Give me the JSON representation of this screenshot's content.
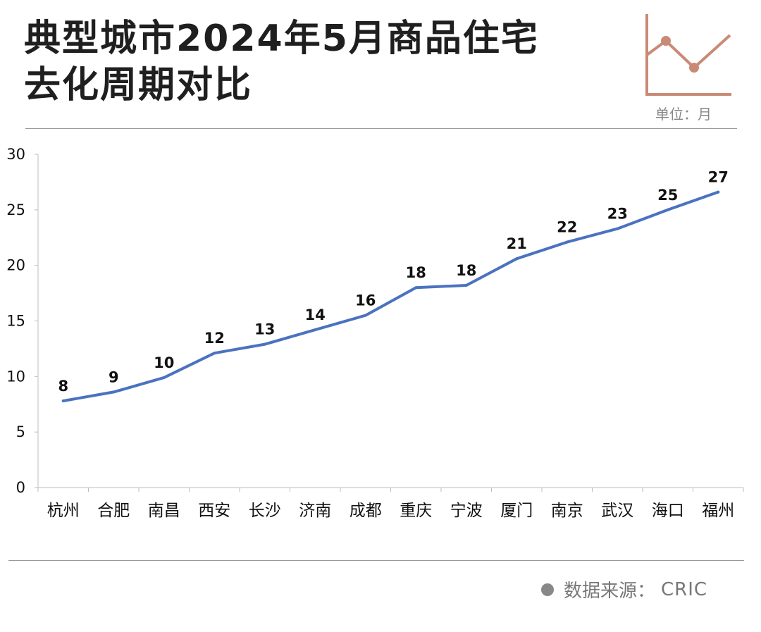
{
  "title_line1": "典型城市2024年5月商品住宅",
  "title_line2": "去化周期对比",
  "unit": "单位：月",
  "source_label": "数据来源：",
  "source_brand": "CRIC",
  "colors": {
    "line": "#4a72c0",
    "icon": "#c98a76",
    "text": "#1f1f1f"
  },
  "chart_data": {
    "type": "line",
    "title": "典型城市2024年5月商品住宅去化周期对比",
    "xlabel": "",
    "ylabel": "",
    "ylim": [
      0,
      30
    ],
    "yticks": [
      0,
      5,
      10,
      15,
      20,
      25,
      30
    ],
    "categories": [
      "杭州",
      "合肥",
      "南昌",
      "西安",
      "长沙",
      "济南",
      "成都",
      "重庆",
      "宁波",
      "厦门",
      "南京",
      "武汉",
      "海口",
      "福州"
    ],
    "values": [
      7.8,
      8.6,
      9.9,
      12.1,
      12.9,
      14.2,
      15.5,
      18.0,
      18.2,
      20.6,
      22.1,
      23.3,
      25.0,
      26.6
    ],
    "labels": [
      "8",
      "9",
      "10",
      "12",
      "13",
      "14",
      "16",
      "18",
      "18",
      "21",
      "22",
      "23",
      "25",
      "27"
    ],
    "grid": false,
    "legend": "none"
  }
}
